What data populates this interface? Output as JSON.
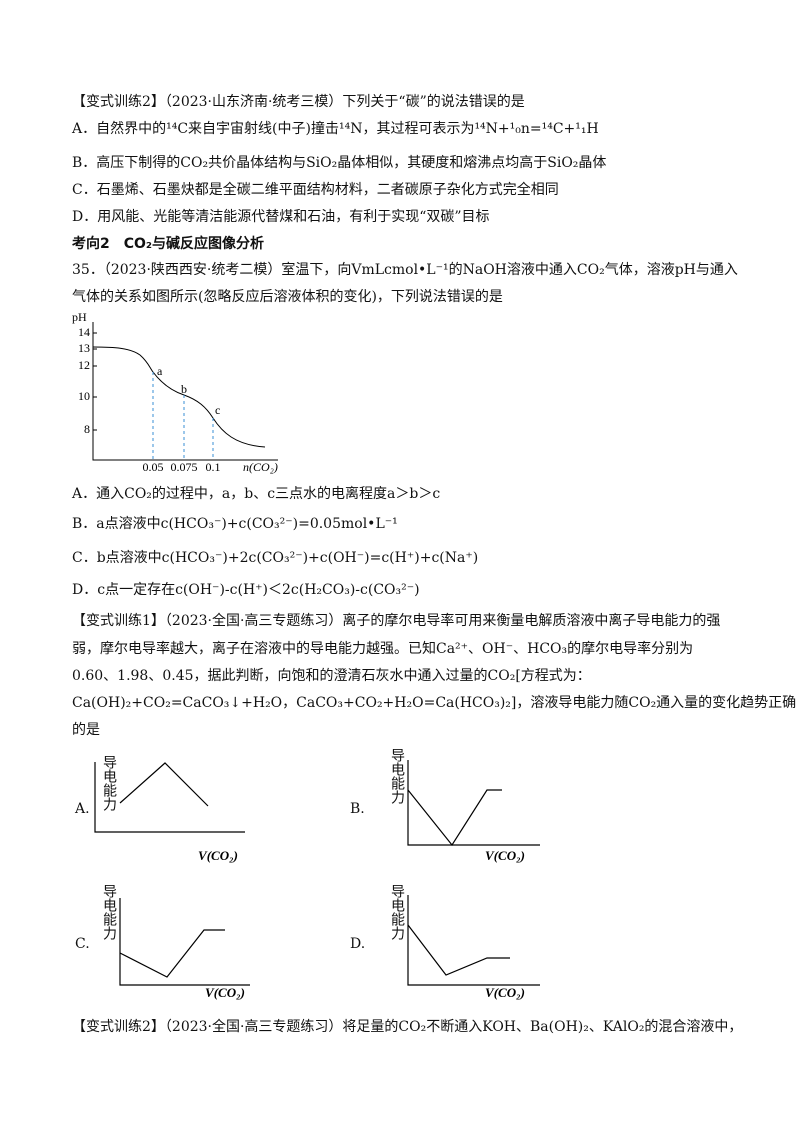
{
  "question_set": {
    "intro": [
      "【变式训练2】（2023·山东济南·统考三模）下列关于“碳”的说法错误的是",
      "A．自然界中的¹⁴C来自宇宙射线(中子)撞击¹⁴N，其过程可表示为¹⁴N+¹₀n=¹⁴C+¹₁H",
      "B．高压下制得的CO₂共价晶体结构与SiO₂晶体相似，其硬度和熔沸点均高于SiO₂晶体",
      "C．石墨烯、石墨炔都是全碳二维平面结构材料，二者碳原子杂化方式完全相同",
      "D．用风能、光能等清洁能源代替煤和石油，有利于实现“双碳”目标"
    ],
    "heading": "考向2　CO₂与碱反应图像分析",
    "q35": [
      "35．（2023·陕西西安·统考二模）室温下，向VmLcmol•L⁻¹的NaOH溶液中通入CO₂气体，溶液pH与通入",
      "气体的关系如图所示(忽略反应后溶液体积的变化)，下列说法错误的是"
    ],
    "ph_chart": {
      "y_label": "pH",
      "y_ticks": [
        "14",
        "13",
        "12",
        "10",
        "8"
      ],
      "x_ticks": [
        "0.05",
        "0.075",
        "0.1"
      ],
      "x_label": "n(CO₂)",
      "points": [
        "a",
        "b",
        "c"
      ]
    },
    "q35_options": [
      "A．通入CO₂的过程中，a，b、c三点水的电离程度a＞b＞c",
      "B．a点溶液中c(HCO₃⁻)+c(CO₃²⁻)=0.05mol•L⁻¹",
      "C．b点溶液中c(HCO₃⁻)+2c(CO₃²⁻)+c(OH⁻)=c(H⁺)+c(Na⁺)",
      "D．c点一定存在c(OH⁻)-c(H⁺)＜2c(H₂CO₃)-c(CO₃²⁻)"
    ],
    "practice1": [
      "【变式训练1】（2023·全国·高三专题练习）离子的摩尔电导率可用来衡量电解质溶液中离子导电能力的强",
      "弱，摩尔电导率越大，离子在溶液中的导电能力越强。已知Ca²⁺、OH⁻、HCO₃的摩尔电导率分别为",
      "0.60、1.98、0.45，据此判断，向饱和的澄清石灰水中通入过量的CO₂[方程式为：",
      "Ca(OH)₂+CO₂=CaCO₃↓+H₂O，CaCO₃+CO₂+H₂O=Ca(HCO₃)₂]，溶液导电能力随CO₂通入量的变化趋势正确",
      "的是"
    ],
    "graphs": [
      {
        "letter": "A.",
        "y_label": "导电能力",
        "x_label": "V(CO₂)"
      },
      {
        "letter": "B.",
        "y_label": "导电能力",
        "x_label": "V(CO₂)"
      },
      {
        "letter": "C.",
        "y_label": "导电能力",
        "x_label": "V(CO₂)"
      },
      {
        "letter": "D.",
        "y_label": "导电能力",
        "x_label": "V(CO₂)"
      }
    ],
    "practice2": "【变式训练2】（2023·全国·高三专题练习）将足量的CO₂不断通入KOH、Ba(OH)₂、KAlO₂的混合溶液中，"
  }
}
